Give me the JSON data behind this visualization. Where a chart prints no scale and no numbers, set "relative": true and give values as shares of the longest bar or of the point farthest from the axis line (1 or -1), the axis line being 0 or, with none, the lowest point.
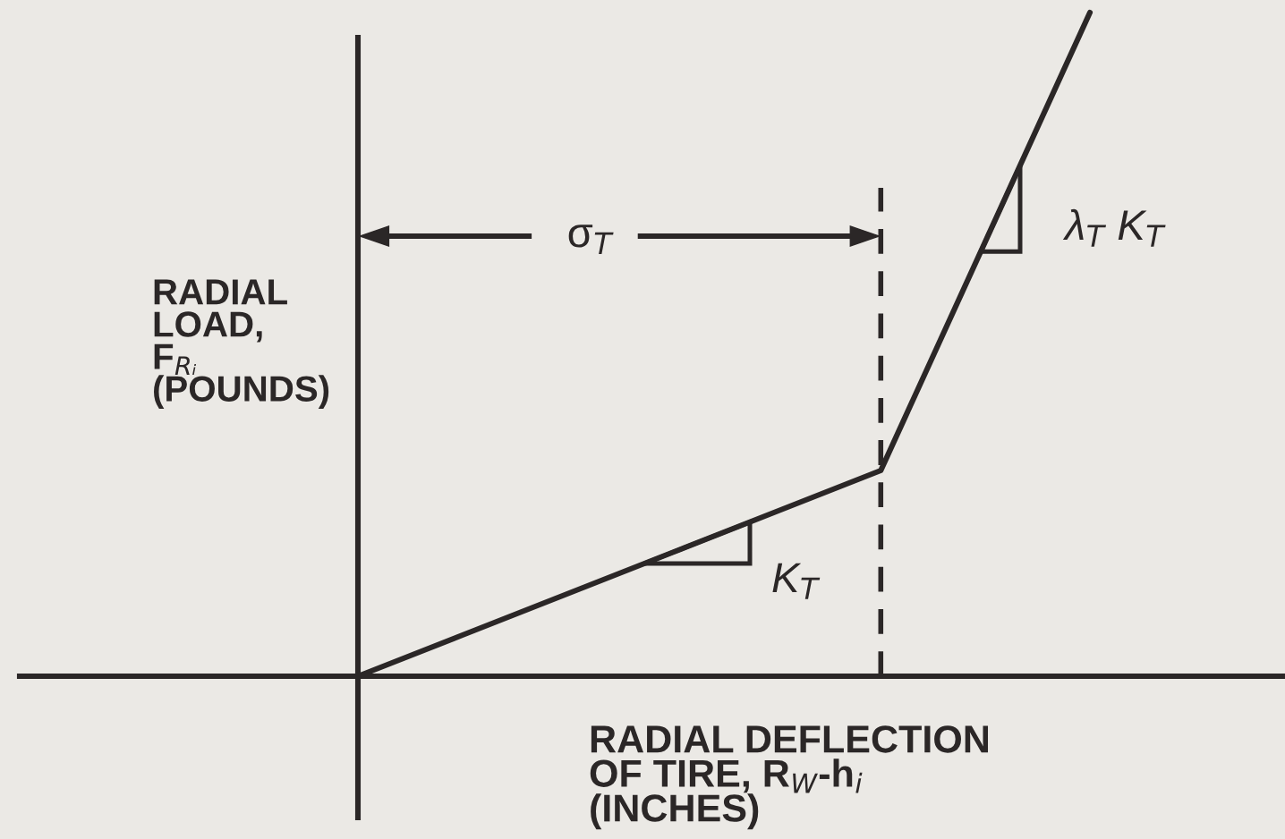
{
  "chart_data": {
    "type": "line",
    "relative": true,
    "categories": [
      null,
      null,
      null,
      null,
      null,
      null,
      null,
      null
    ],
    "values": [
      0,
      0.062,
      0.124,
      0.186,
      0.248,
      0.31,
      0.655,
      1
    ],
    "color": "#2b2727",
    "xlabel": "RADIAL DEFLECTION\nOF TIRE, R$_{W}$-h$_{i}$\n(INCHES)",
    "ylabel": "RADIAL\nLOAD,\nF$_{Rᵢ}$\n(POUNDS)",
    "annotations": [
      "σ$_{T}$",
      "K$_{T}$",
      "λ$_{T}$ K$_{T}$"
    ],
    "line_style": "solid"
  }
}
